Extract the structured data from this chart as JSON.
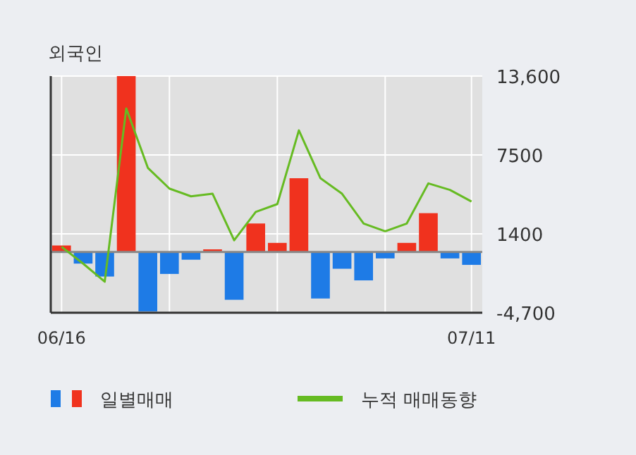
{
  "chart_data": {
    "type": "bar",
    "title": "외국인",
    "categories": [
      "06/16",
      null,
      null,
      null,
      null,
      null,
      null,
      null,
      null,
      null,
      null,
      null,
      null,
      null,
      null,
      null,
      null,
      null,
      null,
      "07/11"
    ],
    "series": [
      {
        "name": "일별매매",
        "colors": [
          "#f0321e",
          "#1e7be6",
          "#1e7be6",
          "#f0321e",
          "#1e7be6",
          "#1e7be6",
          "#1e7be6",
          "#f0321e",
          "#1e7be6",
          "#f0321e",
          "#f0321e",
          "#f0321e",
          "#1e7be6",
          "#1e7be6",
          "#1e7be6",
          "#1e7be6",
          "#f0321e",
          "#f0321e",
          "#1e7be6",
          "#1e7be6"
        ],
        "values": [
          500,
          -900,
          -1900,
          13600,
          -4600,
          -1700,
          -600,
          200,
          -3700,
          2200,
          700,
          5700,
          -3600,
          -1300,
          -2200,
          -500,
          700,
          3000,
          -500,
          -1000
        ]
      },
      {
        "name": "누적 매매동향",
        "type": "line",
        "color": "#66bb22",
        "values": [
          400,
          -900,
          -2300,
          11100,
          6500,
          4900,
          4300,
          4500,
          900,
          3100,
          3700,
          9400,
          5700,
          4500,
          2200,
          1600,
          2200,
          5300,
          4800,
          3900
        ]
      }
    ],
    "ylim": [
      -4700,
      13600
    ],
    "yticks": [
      {
        "value": 13600,
        "label": "13,600"
      },
      7500,
      1400,
      {
        "value": -4700,
        "label": "-4,700"
      }
    ],
    "grid": true,
    "legend": "bottom"
  }
}
